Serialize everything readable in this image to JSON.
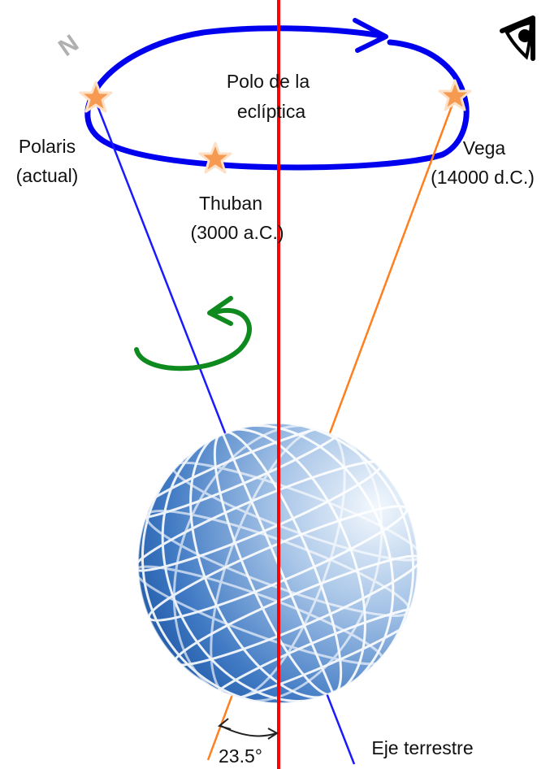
{
  "labels": {
    "pole_line1": "Polo de la",
    "pole_line2": "eclíptica",
    "polaris_line1": "Polaris",
    "polaris_line2": "(actual)",
    "vega_line1": "Vega",
    "vega_line2": "(14000 d.C.)",
    "thuban_line1": "Thuban",
    "thuban_line2": "(3000 a.C.)",
    "angle": "23.5°",
    "axis": "Eje terrestre",
    "north": "N"
  },
  "icons": [
    "eye-icon",
    "star-icon",
    "rotation-arrow-icon",
    "globe-icon"
  ],
  "colors": {
    "orbit": "#0000ee",
    "current_axis": "#1a1aff",
    "future_axis": "#ff7f1f",
    "ecliptic_axis": "#ff0000",
    "rotation_arrow": "#0f8a1f",
    "star": "#f59a50",
    "north_letter": "#b0b0b0",
    "globe_dark": "#1f5bb0",
    "globe_light": "#e4eef9"
  }
}
